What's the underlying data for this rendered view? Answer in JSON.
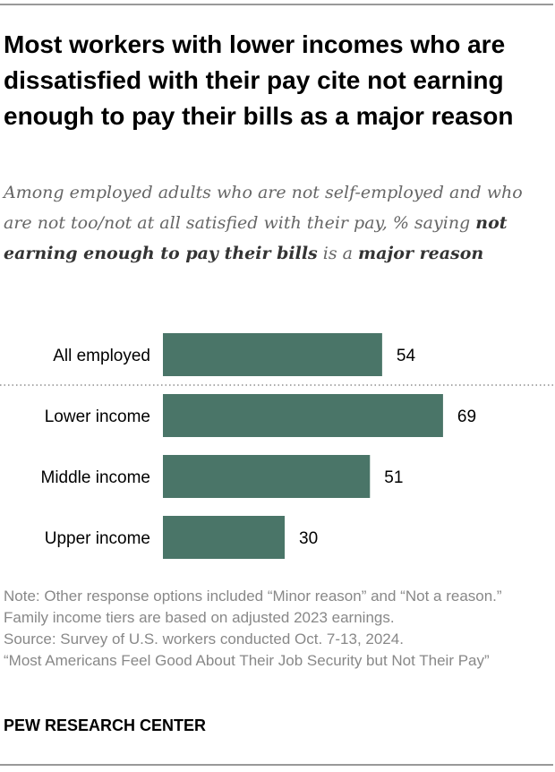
{
  "title": "Most workers with lower incomes who are dissatisfied with their pay cite not earning enough to pay their bills as a major reason",
  "subtitle": {
    "part1": "Among employed adults who are not self-employed and who are not too/not at all satisfied with their pay, % saying ",
    "bold1": "not earning enough to pay their bills",
    "part2": " is a ",
    "bold2": "major reason"
  },
  "chart_data": {
    "type": "bar",
    "orientation": "horizontal",
    "categories": [
      "All employed",
      "Lower income",
      "Middle income",
      "Upper income"
    ],
    "values": [
      54,
      69,
      51,
      30
    ],
    "bar_color": "#4a7568",
    "separator_after_first": true
  },
  "notes": [
    "Note: Other response options included “Minor reason” and “Not a reason.” Family income tiers are based on adjusted 2023 earnings.",
    "Source: Survey of U.S. workers conducted Oct. 7-13, 2024.",
    "“Most Americans Feel Good About Their Job Security but Not Their Pay”"
  ],
  "brand": "PEW RESEARCH CENTER"
}
